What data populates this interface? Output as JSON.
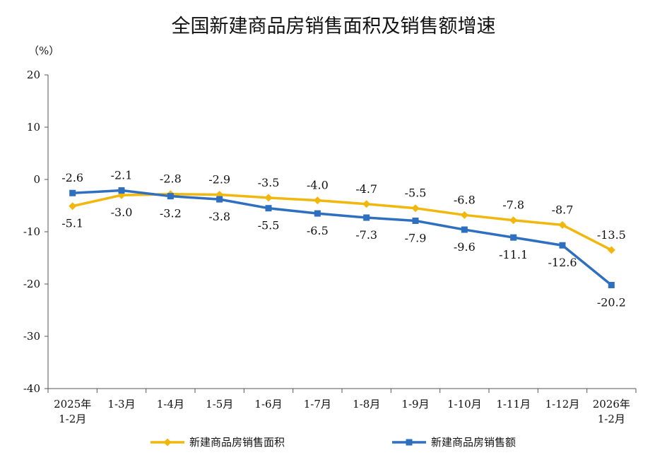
{
  "chart_data": {
    "type": "line",
    "title": "全国新建商品房销售面积及销售额增速",
    "unit": "（%）",
    "xlabel": "",
    "ylabel": "",
    "ylim": [
      -40,
      20
    ],
    "yticks": [
      20,
      10,
      0,
      -10,
      -20,
      -30,
      -40
    ],
    "grid": false,
    "legend": "bottom",
    "categories": [
      [
        "2025年",
        "1-2月"
      ],
      [
        "1-3月"
      ],
      [
        "1-4月"
      ],
      [
        "1-5月"
      ],
      [
        "1-6月"
      ],
      [
        "1-7月"
      ],
      [
        "1-8月"
      ],
      [
        "1-9月"
      ],
      [
        "1-10月"
      ],
      [
        "1-11月"
      ],
      [
        "1-12月"
      ],
      [
        "2026年",
        "1-2月"
      ]
    ],
    "series": [
      {
        "name": "新建商品房销售面积",
        "color": "#F2B70C",
        "marker": "diamond",
        "values": [
          -5.1,
          -3.0,
          -2.8,
          -2.9,
          -3.5,
          -4.0,
          -4.7,
          -5.5,
          -6.8,
          -7.8,
          -8.7,
          -13.5
        ],
        "label_pos": [
          "below",
          "below",
          "above",
          "above",
          "above",
          "above",
          "above",
          "above",
          "above",
          "above",
          "above",
          "above"
        ]
      },
      {
        "name": "新建商品房销售额",
        "color": "#2E6FBF",
        "marker": "square",
        "values": [
          -2.6,
          -2.1,
          -3.2,
          -3.8,
          -5.5,
          -6.5,
          -7.3,
          -7.9,
          -9.6,
          -11.1,
          -12.6,
          -20.2
        ],
        "label_pos": [
          "above",
          "above",
          "below",
          "below",
          "below",
          "below",
          "below",
          "below",
          "below",
          "below",
          "below",
          "below"
        ]
      }
    ]
  }
}
